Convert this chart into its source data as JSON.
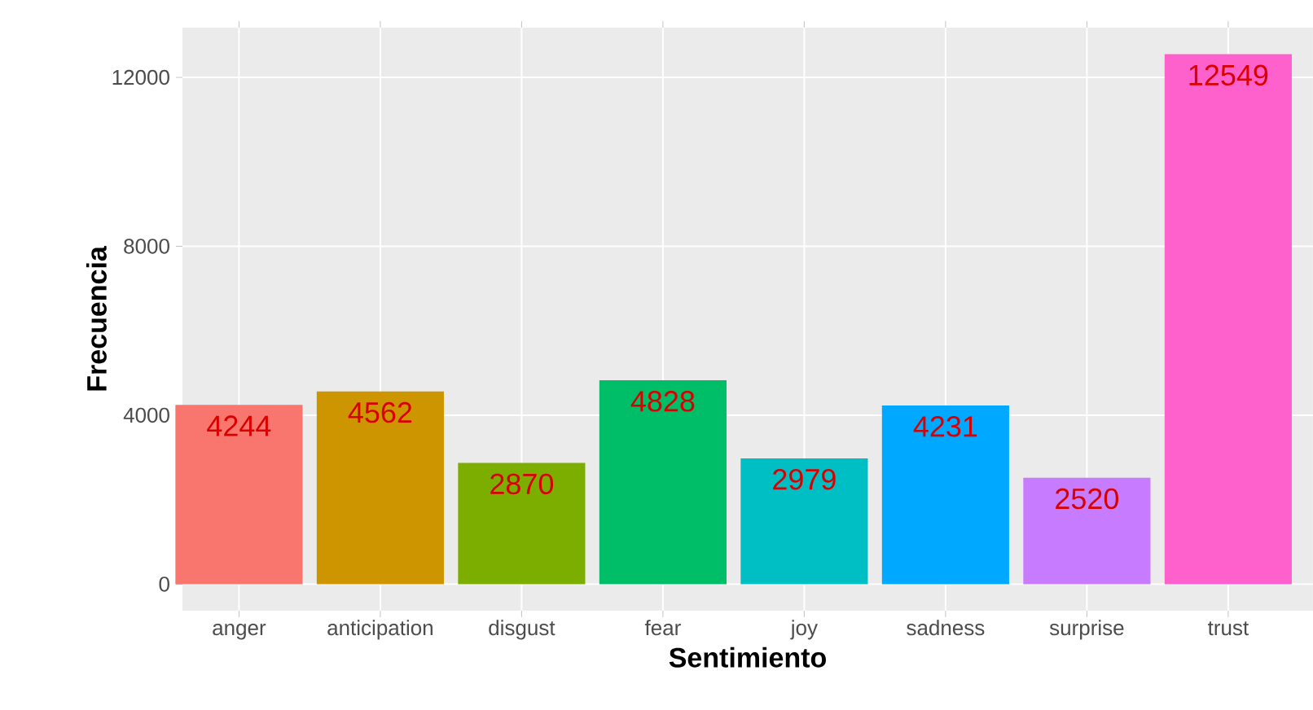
{
  "chart_data": {
    "type": "bar",
    "xlabel": "Sentimiento",
    "ylabel": "Frecuencia",
    "categories": [
      "anger",
      "anticipation",
      "disgust",
      "fear",
      "joy",
      "sadness",
      "surprise",
      "trust"
    ],
    "values": [
      4244,
      4562,
      2870,
      4828,
      2979,
      4231,
      2520,
      12549
    ],
    "colors": [
      "#f8766d",
      "#cd9600",
      "#7cae00",
      "#00be67",
      "#00bfc4",
      "#00a9ff",
      "#c77cff",
      "#ff61cc"
    ],
    "ylim": [
      -627,
      13176
    ],
    "yticks": [
      0,
      4000,
      8000,
      12000
    ],
    "grid": true,
    "data_labels": true
  }
}
